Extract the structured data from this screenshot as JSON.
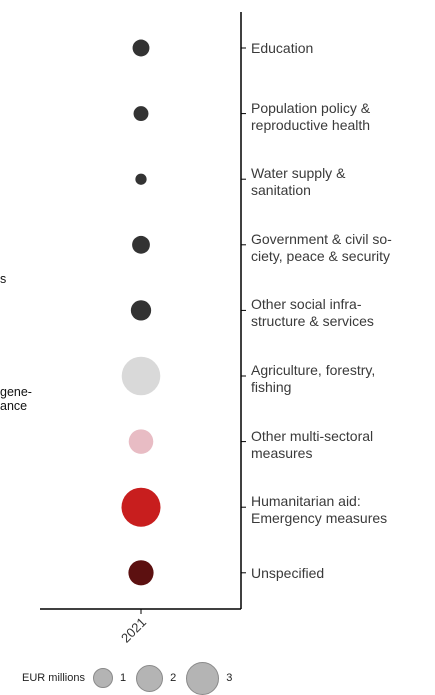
{
  "chart_data": {
    "type": "bubble",
    "x": [
      "2021"
    ],
    "categories": [
      {
        "label": "Education",
        "value": 0.9,
        "color": "#333333"
      },
      {
        "label": "Population policy &\nreproductive health",
        "value": 0.7,
        "color": "#333333"
      },
      {
        "label": "Water supply &\nsanitation",
        "value": 0.4,
        "color": "#333333"
      },
      {
        "label": "Government & civil so-\nciety, peace & security",
        "value": 1.0,
        "color": "#333333"
      },
      {
        "label": "Other social infra-\nstructure & services",
        "value": 1.3,
        "color": "#333333"
      },
      {
        "label": "Agriculture, forestry,\nfishing",
        "value": 4.7,
        "color": "#d9d9d9"
      },
      {
        "label": "Other multi-sectoral\nmeasures",
        "value": 1.9,
        "color": "#e8bcc4"
      },
      {
        "label": "Humanitarian aid:\nEmergency measures",
        "value": 4.8,
        "color": "#c81e1e"
      },
      {
        "label": "Unspecified",
        "value": 2.0,
        "color": "#5c1010"
      }
    ],
    "legend": {
      "title": "EUR millions",
      "sizes": [
        {
          "value": 1,
          "label": "1"
        },
        {
          "value": 2,
          "label": "2"
        },
        {
          "value": 3,
          "label": "3"
        }
      ],
      "color": "#b4b4b4"
    },
    "stray_labels": [
      "s",
      "gene-\nance"
    ]
  }
}
